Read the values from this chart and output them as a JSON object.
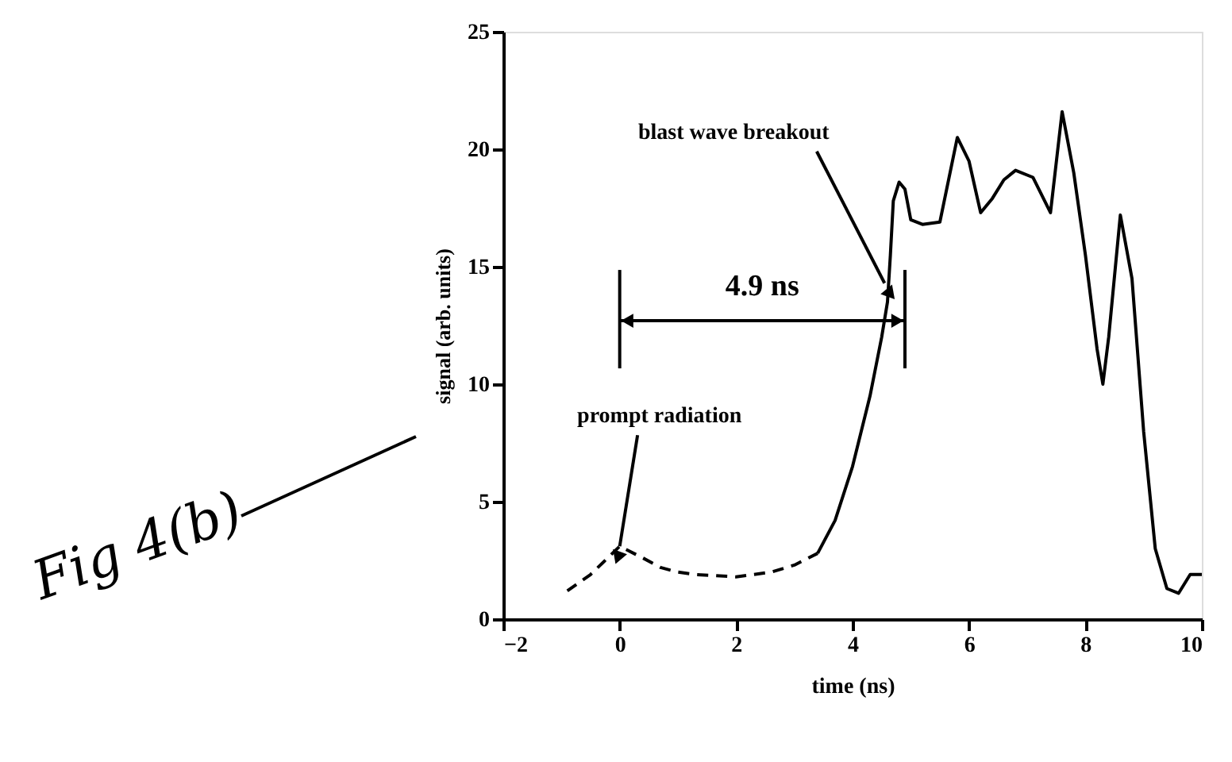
{
  "chart_data": {
    "type": "line",
    "xlabel": "time (ns)",
    "ylabel": "signal (arb. units)",
    "xlim": [
      -2,
      10
    ],
    "ylim": [
      0,
      25
    ],
    "xticks": [
      -2,
      0,
      2,
      4,
      6,
      8,
      10
    ],
    "yticks": [
      0,
      5,
      10,
      15,
      20,
      25
    ],
    "grid": false,
    "ref_lines": [
      {
        "axis": "x",
        "value": 0
      },
      {
        "axis": "x",
        "value": 4.9
      }
    ],
    "series": [
      {
        "color": "#000000",
        "line_style": "dashed",
        "x": [
          -0.9,
          -0.5,
          0,
          0.4,
          0.7,
          1.0,
          1.3,
          2.0,
          2.6,
          3.0,
          3.4
        ],
        "values": [
          1.2,
          1.9,
          3.1,
          2.6,
          2.2,
          2.0,
          1.9,
          1.8,
          2.0,
          2.3,
          2.8
        ]
      },
      {
        "color": "#000000",
        "line_style": "solid",
        "x": [
          3.4,
          3.7,
          4.0,
          4.3,
          4.5,
          4.6,
          4.65,
          4.7,
          4.8,
          4.9,
          5.0,
          5.2,
          5.5,
          5.8,
          6.0,
          6.2,
          6.4,
          6.6,
          6.8,
          7.1,
          7.4,
          7.6,
          7.8,
          8.0,
          8.2,
          8.3,
          8.4,
          8.6,
          8.8,
          9.0,
          9.2,
          9.4,
          9.6,
          9.8,
          10.0
        ],
        "values": [
          2.8,
          4.2,
          6.5,
          9.5,
          12.0,
          13.5,
          15.5,
          17.8,
          18.6,
          18.3,
          17.0,
          16.8,
          16.9,
          20.5,
          19.5,
          17.3,
          17.9,
          18.7,
          19.1,
          18.8,
          17.3,
          21.6,
          19.0,
          15.5,
          11.5,
          10.0,
          12.0,
          17.2,
          14.5,
          8.0,
          3.0,
          1.3,
          1.1,
          1.9,
          1.9
        ]
      }
    ],
    "annotations": [
      {
        "text": "blast wave breakout",
        "x": 4.55,
        "y": 14.3
      },
      {
        "text": "prompt radiation",
        "x": 0,
        "y": 3.1
      },
      "4.9 ns",
      "Fig 4(b)"
    ]
  }
}
